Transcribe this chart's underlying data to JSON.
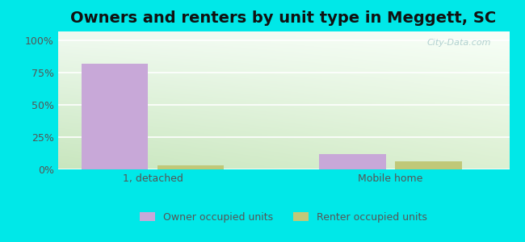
{
  "title": "Owners and renters by unit type in Meggett, SC",
  "categories": [
    "1, detached",
    "Mobile home"
  ],
  "owner_values": [
    82,
    12
  ],
  "renter_values": [
    3,
    6
  ],
  "owner_color": "#c8a8d8",
  "renter_color": "#c0c878",
  "background_outer": "#00e8e8",
  "bg_top_left": "#c8e8c0",
  "bg_top_right": "#e8f5e0",
  "bg_bottom": "#d0ecc0",
  "yticks": [
    0,
    25,
    50,
    75,
    100
  ],
  "ytick_labels": [
    "0%",
    "25%",
    "50%",
    "75%",
    "100%"
  ],
  "ylim": [
    0,
    107
  ],
  "bar_width": 0.28,
  "group_positions": [
    0.5,
    1.5
  ],
  "xlim": [
    0.1,
    2.0
  ],
  "legend_owner": "Owner occupied units",
  "legend_renter": "Renter occupied units",
  "watermark": "City-Data.com",
  "title_fontsize": 14,
  "tick_fontsize": 9,
  "legend_fontsize": 9
}
